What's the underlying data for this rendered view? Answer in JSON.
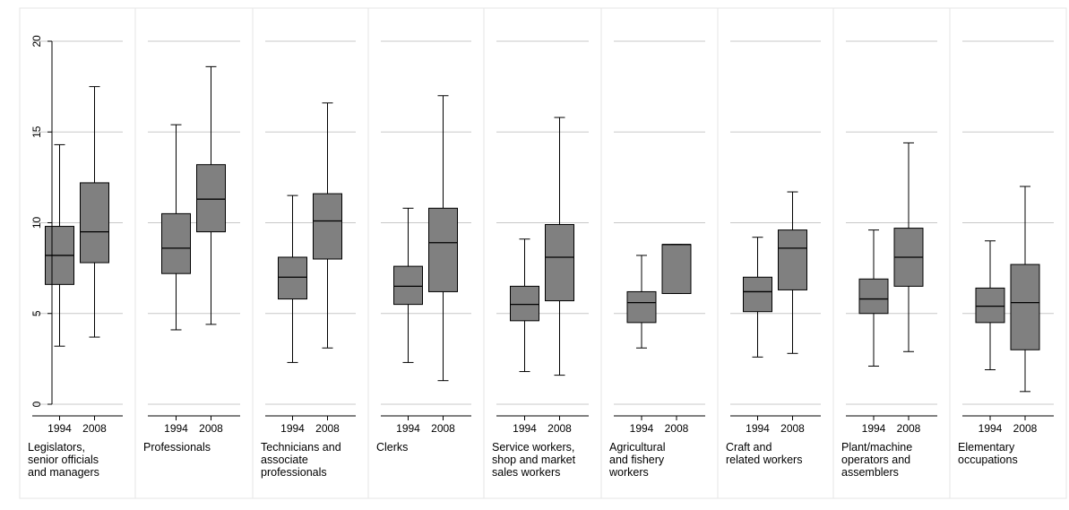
{
  "chart_data": {
    "type": "boxplot",
    "ylim": [
      0,
      20
    ],
    "yticks": [
      "0",
      "5",
      "10",
      "15",
      "20"
    ],
    "ytick_values": [
      0,
      5,
      10,
      15,
      20
    ],
    "grid": true,
    "colors": {
      "box": "#808080",
      "border": "#000000",
      "grid": "#c8c8c8",
      "panel_border": "#e6e6e6"
    },
    "years": [
      "1994",
      "2008"
    ],
    "panels": [
      {
        "label": "Legislators,\nsenior officials\nand managers",
        "boxes": [
          {
            "year": "1994",
            "min": 3.2,
            "q1": 6.6,
            "median": 8.2,
            "q3": 9.8,
            "max": 14.3
          },
          {
            "year": "2008",
            "min": 3.7,
            "q1": 7.8,
            "median": 9.5,
            "q3": 12.2,
            "max": 17.5
          }
        ]
      },
      {
        "label": "Professionals",
        "boxes": [
          {
            "year": "1994",
            "min": 4.1,
            "q1": 7.2,
            "median": 8.6,
            "q3": 10.5,
            "max": 15.4
          },
          {
            "year": "2008",
            "min": 4.4,
            "q1": 9.5,
            "median": 11.3,
            "q3": 13.2,
            "max": 18.6
          }
        ]
      },
      {
        "label": "Technicians and\nassociate\nprofessionals",
        "boxes": [
          {
            "year": "1994",
            "min": 2.3,
            "q1": 5.8,
            "median": 7.0,
            "q3": 8.1,
            "max": 11.5
          },
          {
            "year": "2008",
            "min": 3.1,
            "q1": 8.0,
            "median": 10.1,
            "q3": 11.6,
            "max": 16.6
          }
        ]
      },
      {
        "label": "Clerks",
        "boxes": [
          {
            "year": "1994",
            "min": 2.3,
            "q1": 5.5,
            "median": 6.5,
            "q3": 7.6,
            "max": 10.8
          },
          {
            "year": "2008",
            "min": 1.3,
            "q1": 6.2,
            "median": 8.9,
            "q3": 10.8,
            "max": 17.0
          }
        ]
      },
      {
        "label": "Service workers,\nshop and market\nsales workers",
        "boxes": [
          {
            "year": "1994",
            "min": 1.8,
            "q1": 4.6,
            "median": 5.5,
            "q3": 6.5,
            "max": 9.1
          },
          {
            "year": "2008",
            "min": 1.6,
            "q1": 5.7,
            "median": 8.1,
            "q3": 9.9,
            "max": 15.8
          }
        ]
      },
      {
        "label": "Agricultural\nand fishery\nworkers",
        "boxes": [
          {
            "year": "1994",
            "min": 3.1,
            "q1": 4.5,
            "median": 5.6,
            "q3": 6.2,
            "max": 8.2
          },
          {
            "year": "2008",
            "min": 6.1,
            "q1": 6.1,
            "median": 8.8,
            "q3": 8.8,
            "max": 8.8
          }
        ]
      },
      {
        "label": "Craft and\nrelated workers",
        "boxes": [
          {
            "year": "1994",
            "min": 2.6,
            "q1": 5.1,
            "median": 6.2,
            "q3": 7.0,
            "max": 9.2
          },
          {
            "year": "2008",
            "min": 2.8,
            "q1": 6.3,
            "median": 8.6,
            "q3": 9.6,
            "max": 11.7
          }
        ]
      },
      {
        "label": "Plant/machine\noperators and\nassemblers",
        "boxes": [
          {
            "year": "1994",
            "min": 2.1,
            "q1": 5.0,
            "median": 5.8,
            "q3": 6.9,
            "max": 9.6
          },
          {
            "year": "2008",
            "min": 2.9,
            "q1": 6.5,
            "median": 8.1,
            "q3": 9.7,
            "max": 14.4
          }
        ]
      },
      {
        "label": "Elementary\noccupations",
        "boxes": [
          {
            "year": "1994",
            "min": 1.9,
            "q1": 4.5,
            "median": 5.4,
            "q3": 6.4,
            "max": 9.0
          },
          {
            "year": "2008",
            "min": 0.7,
            "q1": 3.0,
            "median": 5.6,
            "q3": 7.7,
            "max": 12.0
          }
        ]
      }
    ]
  }
}
